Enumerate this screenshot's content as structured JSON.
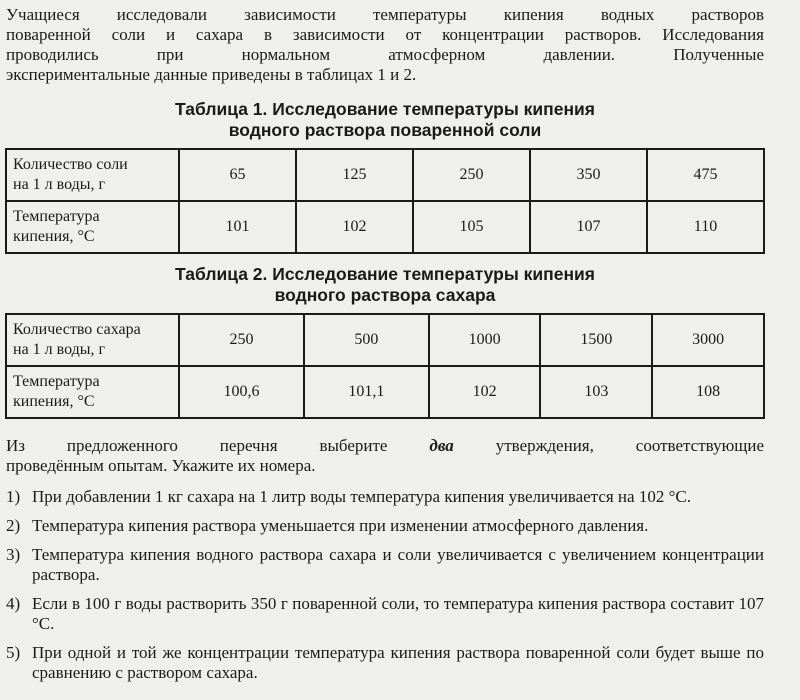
{
  "intro": [
    "Учащиеся исследовали зависимости температуры кипения водных растворов",
    "поваренной соли и сахара в зависимости от концентрации растворов. Исследования",
    "проводились при нормальном атмосферном давлении. Полученные",
    "экспериментальные данные приведены в таблицах 1 и 2."
  ],
  "table1": {
    "title_line1": "Таблица 1. Исследование температуры кипения",
    "title_line2": "водного раствора поваренной соли",
    "row1_header": [
      "Количество соли",
      "на 1 л воды, г"
    ],
    "row1": [
      "65",
      "125",
      "250",
      "350",
      "475"
    ],
    "row2_header": [
      "Температура",
      "кипения, °С"
    ],
    "row2": [
      "101",
      "102",
      "105",
      "107",
      "110"
    ]
  },
  "table2": {
    "title_line1": "Таблица 2. Исследование температуры кипения",
    "title_line2": "водного раствора сахара",
    "row1_header": [
      "Количество сахара",
      "на 1 л воды, г"
    ],
    "row1": [
      "250",
      "500",
      "1000",
      "1500",
      "3000"
    ],
    "row2_header": [
      "Температура",
      "кипения, °С"
    ],
    "row2": [
      "100,6",
      "101,1",
      "102",
      "103",
      "108"
    ]
  },
  "question": {
    "before": "Из предложенного перечня выберите",
    "emphasis": "два",
    "after": "утверждения, соответствующие",
    "line2": "проведённым опытам. Укажите их номера."
  },
  "options": [
    {
      "num": "1)",
      "text": "При добавлении 1 кг сахара на 1 литр воды температура кипения увеличивается на 102 °С."
    },
    {
      "num": "2)",
      "text": "Температура кипения раствора уменьшается при изменении атмосферного давления."
    },
    {
      "num": "3)",
      "text": "Температура кипения водного раствора сахара и соли увеличивается с увеличением концентрации раствора."
    },
    {
      "num": "4)",
      "text": "Если в 100 г воды растворить 350 г поваренной соли, то температура кипения раствора составит 107 °С."
    },
    {
      "num": "5)",
      "text": "При одной и той же концентрации температура кипения раствора поваренной соли будет выше по сравнению с раствором сахара."
    }
  ]
}
